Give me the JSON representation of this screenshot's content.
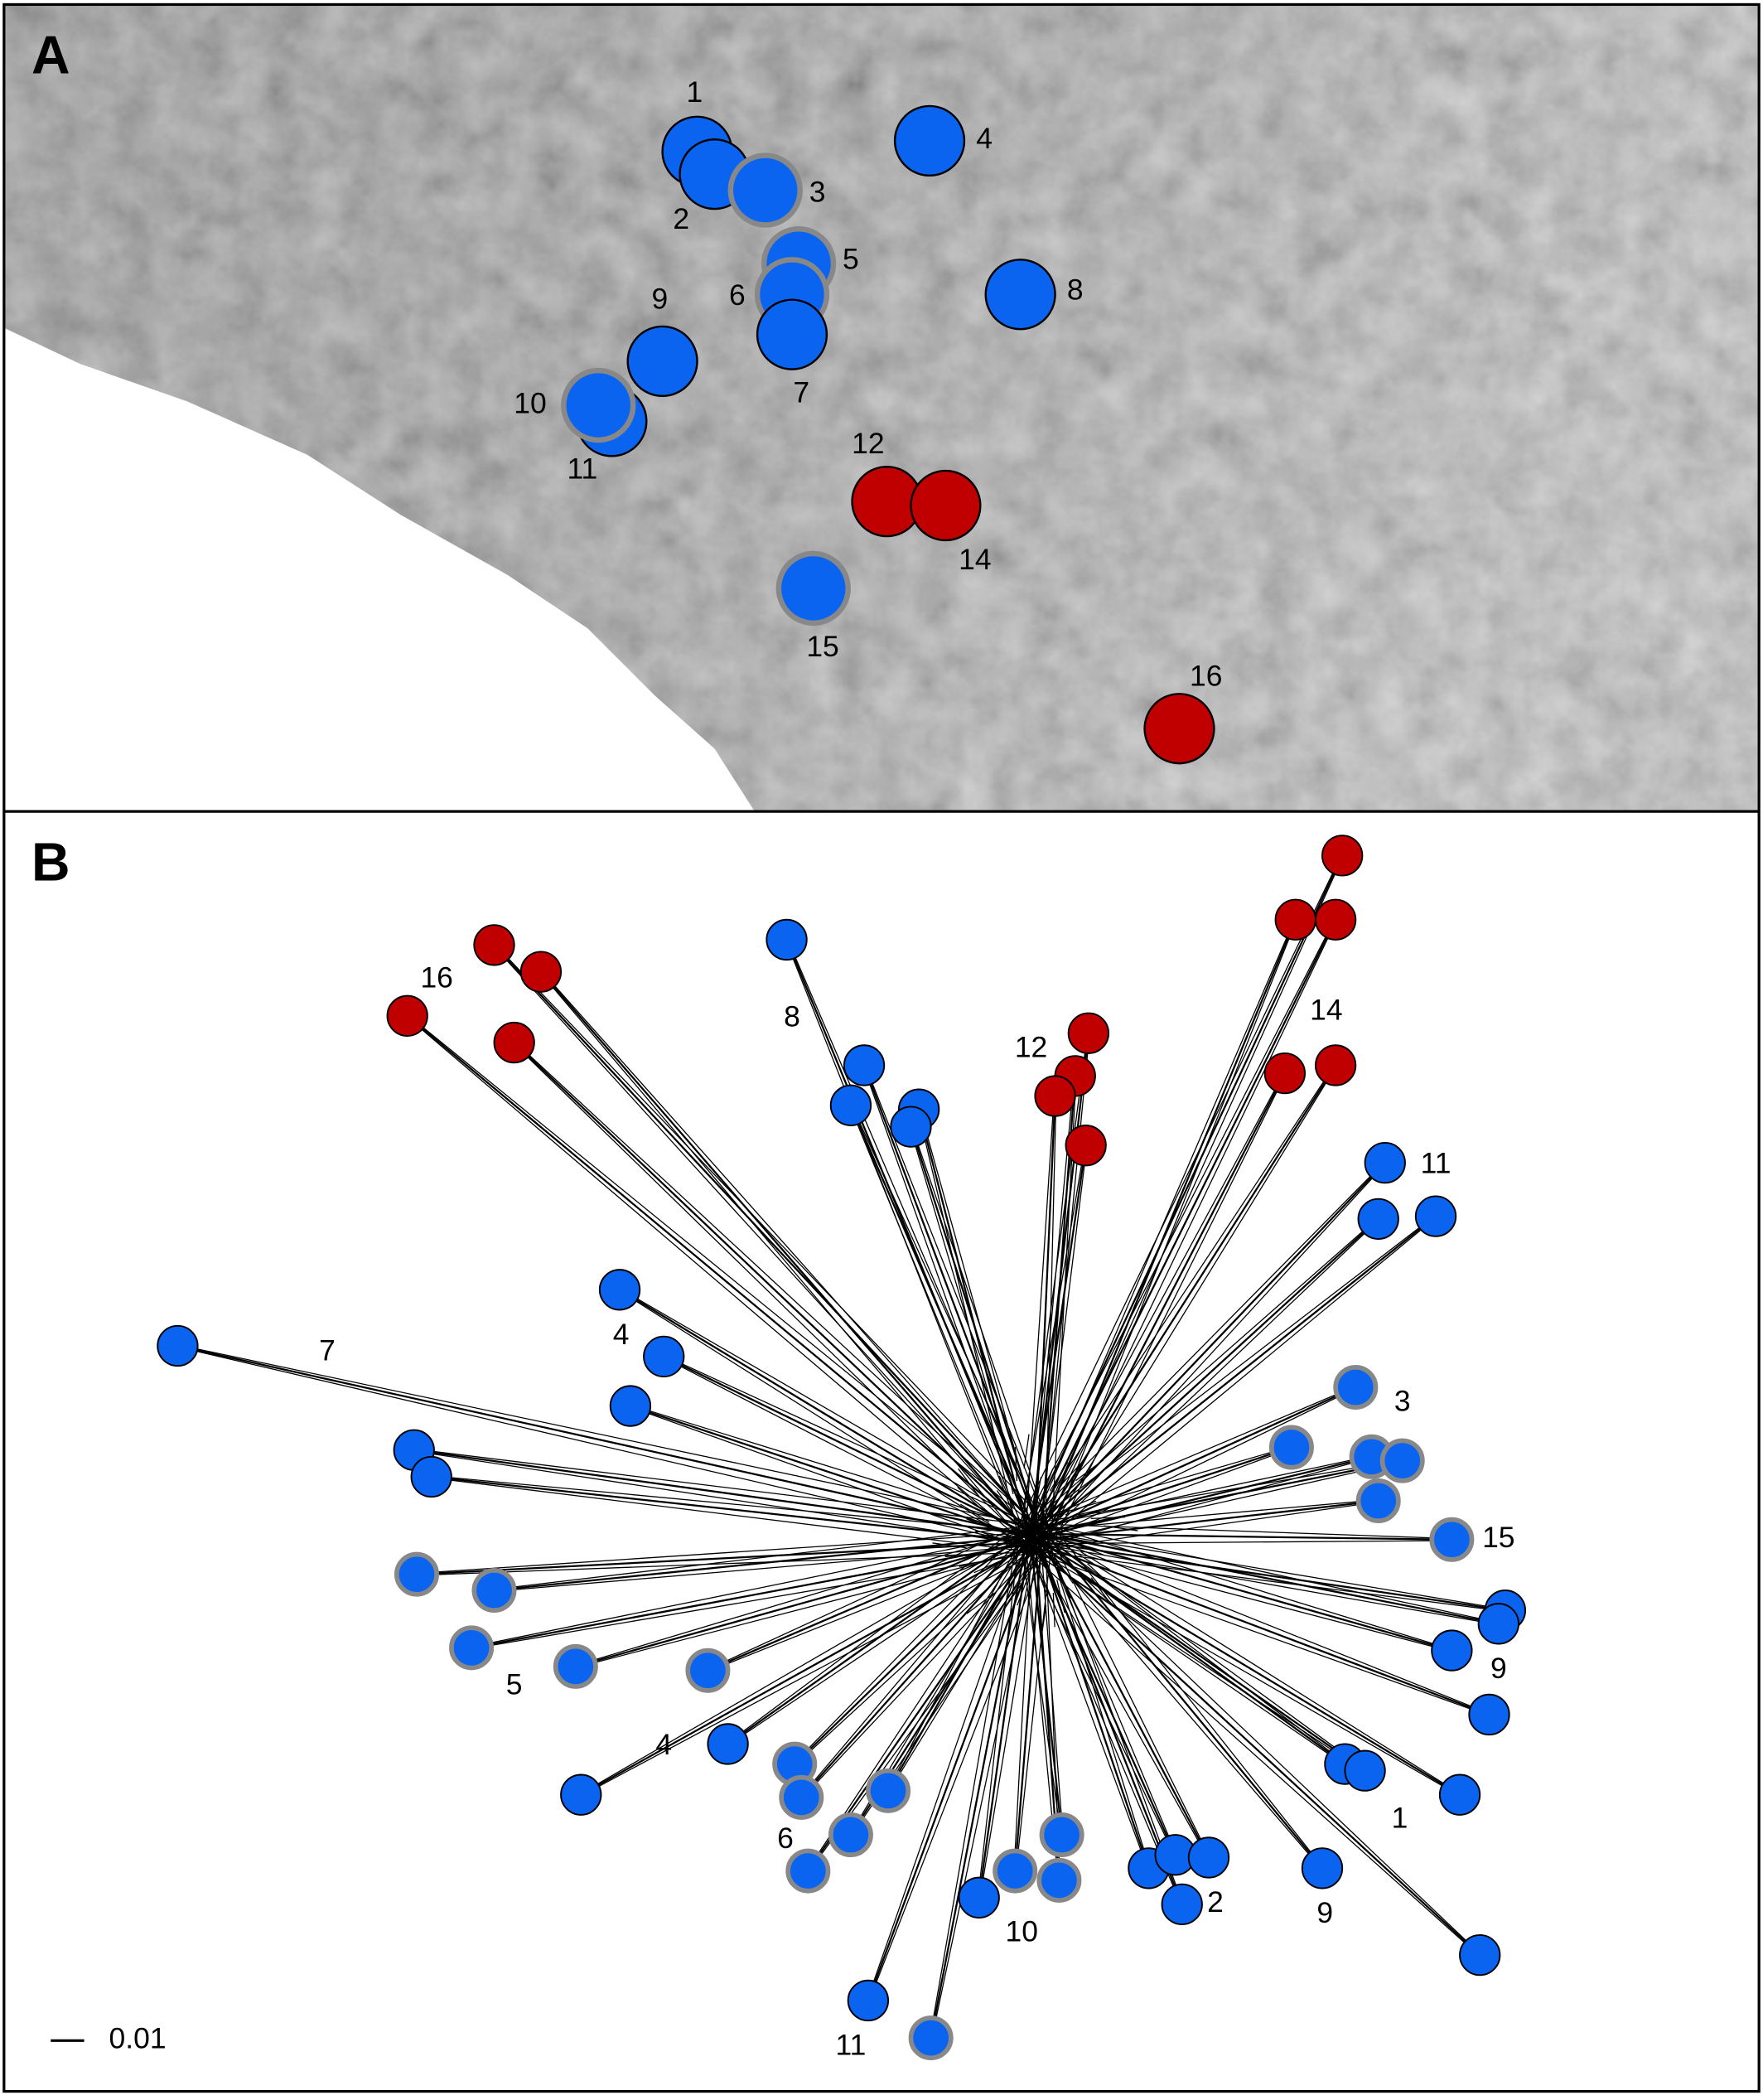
{
  "panel_a": {
    "label": "A",
    "site_labels": [
      "1",
      "2",
      "3",
      "4",
      "5",
      "6",
      "7",
      "8",
      "9",
      "10",
      "11",
      "12",
      "14",
      "15",
      "16"
    ]
  },
  "panel_b": {
    "label": "B",
    "tip_labels": [
      "16",
      "8",
      "12",
      "14",
      "11",
      "7",
      "4",
      "3",
      "15",
      "9",
      "5",
      "4",
      "1",
      "6",
      "2",
      "9",
      "10",
      "11"
    ],
    "scale_bar_label": "0.01"
  }
}
